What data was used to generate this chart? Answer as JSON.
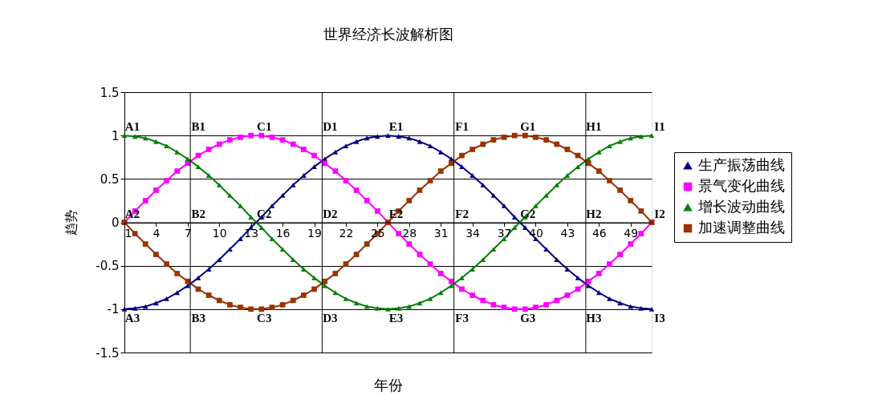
{
  "chart_data": {
    "type": "line",
    "title": "世界经济长波解析图",
    "xlabel": "年份",
    "ylabel": "趋势",
    "x": [
      1,
      2,
      3,
      4,
      5,
      6,
      7,
      8,
      9,
      10,
      11,
      12,
      13,
      14,
      15,
      16,
      17,
      18,
      19,
      20,
      21,
      22,
      23,
      24,
      25,
      26,
      27,
      28,
      29,
      30,
      31,
      32,
      33,
      34,
      35,
      36,
      37,
      38,
      39,
      40,
      41,
      42,
      43,
      44,
      45,
      46,
      47,
      48,
      49,
      50,
      51
    ],
    "xlim": [
      1,
      51
    ],
    "xticks": [
      1,
      4,
      7,
      10,
      13,
      16,
      19,
      22,
      25,
      28,
      31,
      34,
      37,
      40,
      43,
      46,
      49
    ],
    "ylim": [
      -1.5,
      1.5
    ],
    "yticks": [
      -1.5,
      -1,
      -0.5,
      0,
      0.5,
      1,
      1.5
    ],
    "grid": "y",
    "legend": "right",
    "series": [
      {
        "name": "生产振荡曲线",
        "color": "#000080",
        "marker": "triangle",
        "values": [
          -1,
          -0.99,
          -0.97,
          -0.93,
          -0.88,
          -0.81,
          -0.73,
          -0.64,
          -0.54,
          -0.43,
          -0.31,
          -0.19,
          -0.06,
          0.06,
          0.19,
          0.31,
          0.43,
          0.54,
          0.64,
          0.73,
          0.81,
          0.88,
          0.93,
          0.97,
          0.99,
          1,
          0.99,
          0.97,
          0.93,
          0.88,
          0.81,
          0.73,
          0.64,
          0.54,
          0.43,
          0.31,
          0.19,
          0.06,
          -0.06,
          -0.19,
          -0.31,
          -0.43,
          -0.54,
          -0.64,
          -0.73,
          -0.81,
          -0.88,
          -0.93,
          -0.97,
          -0.99,
          -1
        ]
      },
      {
        "name": "景气变化曲线",
        "color": "#ff00ff",
        "marker": "square",
        "values": [
          0,
          0.13,
          0.25,
          0.37,
          0.48,
          0.59,
          0.68,
          0.77,
          0.84,
          0.9,
          0.95,
          0.98,
          1,
          1,
          0.98,
          0.95,
          0.9,
          0.84,
          0.77,
          0.68,
          0.59,
          0.48,
          0.37,
          0.25,
          0.13,
          0,
          -0.13,
          -0.25,
          -0.37,
          -0.48,
          -0.59,
          -0.68,
          -0.77,
          -0.84,
          -0.9,
          -0.95,
          -0.98,
          -1,
          -1,
          -0.98,
          -0.95,
          -0.9,
          -0.84,
          -0.77,
          -0.68,
          -0.59,
          -0.48,
          -0.37,
          -0.25,
          -0.13,
          0
        ]
      },
      {
        "name": "增长波动曲线",
        "color": "#008000",
        "marker": "triangle",
        "values": [
          1,
          0.99,
          0.97,
          0.93,
          0.88,
          0.81,
          0.73,
          0.64,
          0.54,
          0.43,
          0.31,
          0.19,
          0.06,
          -0.06,
          -0.19,
          -0.31,
          -0.43,
          -0.54,
          -0.64,
          -0.73,
          -0.81,
          -0.88,
          -0.93,
          -0.97,
          -0.99,
          -1,
          -0.99,
          -0.97,
          -0.93,
          -0.88,
          -0.81,
          -0.73,
          -0.64,
          -0.54,
          -0.43,
          -0.31,
          -0.19,
          -0.06,
          0.06,
          0.19,
          0.31,
          0.43,
          0.54,
          0.64,
          0.73,
          0.81,
          0.88,
          0.93,
          0.97,
          0.99,
          1
        ]
      },
      {
        "name": "加速调整曲线",
        "color": "#993300",
        "marker": "square",
        "values": [
          0,
          -0.13,
          -0.25,
          -0.37,
          -0.48,
          -0.59,
          -0.68,
          -0.77,
          -0.84,
          -0.9,
          -0.95,
          -0.98,
          -1,
          -1,
          -0.98,
          -0.95,
          -0.9,
          -0.84,
          -0.77,
          -0.68,
          -0.59,
          -0.48,
          -0.37,
          -0.25,
          -0.13,
          0,
          0.13,
          0.25,
          0.37,
          0.48,
          0.59,
          0.68,
          0.77,
          0.84,
          0.9,
          0.95,
          0.98,
          1,
          1,
          0.98,
          0.95,
          0.9,
          0.84,
          0.77,
          0.68,
          0.59,
          0.48,
          0.37,
          0.25,
          0.13,
          0
        ]
      }
    ],
    "ref_lines": [
      {
        "axis": "x",
        "value": 7.25,
        "color": "#000000"
      },
      {
        "axis": "x",
        "value": 19.75,
        "color": "#000000"
      },
      {
        "axis": "x",
        "value": 32.25,
        "color": "#000000"
      },
      {
        "axis": "x",
        "value": 44.75,
        "color": "#000000"
      }
    ],
    "annotations": [
      "A1",
      "B1",
      "C1",
      "D1",
      "E1",
      "F1",
      "G1",
      "H1",
      "I1",
      "A2",
      "B2",
      "C2",
      "D2",
      "E2",
      "F2",
      "G2",
      "H2",
      "I2",
      "A3",
      "B3",
      "C3",
      "D3",
      "E3",
      "F3",
      "G3",
      "H3",
      "I3"
    ]
  }
}
